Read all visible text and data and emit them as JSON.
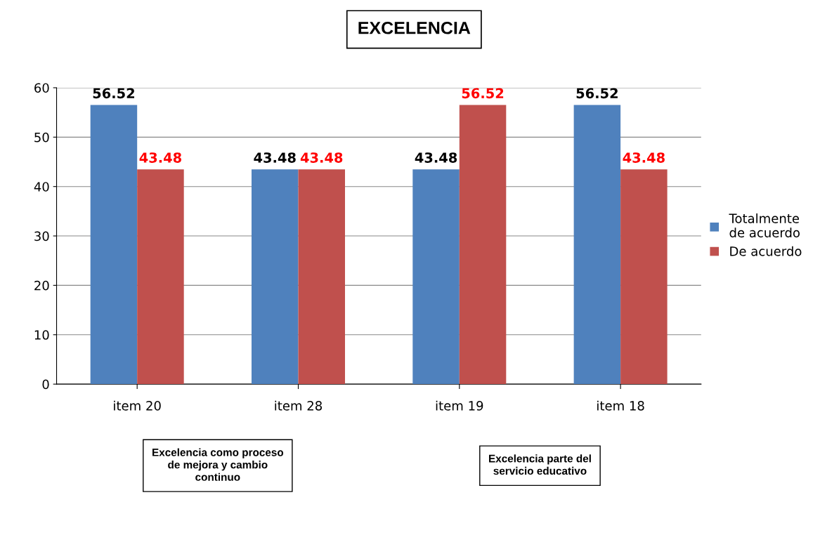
{
  "chart_data": {
    "type": "bar",
    "title": "EXCELENCIA",
    "categories": [
      "item 20",
      "item 28",
      "item 19",
      "item 18"
    ],
    "series": [
      {
        "name": "Totalmente\nde acuerdo",
        "color": "#4f81bd",
        "values": [
          56.52,
          43.48,
          43.48,
          56.52
        ]
      },
      {
        "name": "De acuerdo",
        "color": "#c0504d",
        "values": [
          43.48,
          43.48,
          56.52,
          43.48
        ]
      }
    ],
    "ylim": [
      0,
      60
    ],
    "yticks": [
      0,
      10,
      20,
      30,
      40,
      50,
      60
    ],
    "grid": "y",
    "legend": "right",
    "data_labels": true,
    "annotations": [
      "Excelencia como proceso\nde mejora y cambio\ncontinuo",
      "Excelencia parte del\nservicio educativo"
    ]
  }
}
